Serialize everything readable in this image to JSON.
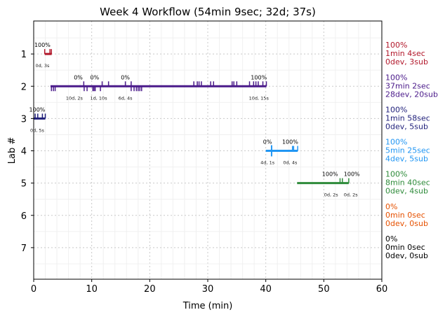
{
  "chart_data": {
    "type": "timeline",
    "title": "Week 4 Workflow (54min 9sec; 32d; 37s)",
    "xlabel": "Time (min)",
    "ylabel": "Lab #",
    "xlim": [
      0,
      60
    ],
    "ylim": [
      8,
      0
    ],
    "xticks": [
      "0",
      "10",
      "20",
      "30",
      "40",
      "50",
      "60"
    ],
    "yticks": [
      "1",
      "2",
      "3",
      "4",
      "5",
      "6",
      "7"
    ],
    "grid": true,
    "labs": [
      {
        "lab": 1,
        "color": "#b2182b",
        "start": 1.9,
        "end": 3.1,
        "up": [
          1.9,
          2.8,
          3.05
        ],
        "down": [],
        "annotations": [
          {
            "t": 1.5,
            "above": "100%",
            "below": "0d, 3s"
          }
        ],
        "summary": [
          "100%",
          "1min 4sec",
          "0dev, 3sub"
        ]
      },
      {
        "lab": 2,
        "color": "#4a1a8a",
        "start": 2.9,
        "end": 40.1,
        "up": [
          8.63,
          11.8,
          12.9,
          15.8,
          16.8,
          27.6,
          28.2,
          28.5,
          28.9,
          30.5,
          31.0,
          34.2,
          34.5,
          35.0,
          37.2,
          37.9,
          38.3,
          38.7,
          39.5,
          40.1
        ],
        "down": [
          3.06,
          3.4,
          3.7,
          8.7,
          9.2,
          10.2,
          10.4,
          10.6,
          11.5,
          16.8,
          17.3,
          17.7,
          18.0,
          18.3,
          18.6
        ],
        "annotations": [
          {
            "t": 8.7,
            "above": "0%",
            "below": "10d, 2s"
          },
          {
            "t": 9.5,
            "above": "0%",
            "below": "1d, 10s"
          },
          {
            "t": 15.8,
            "above": "0%",
            "below": "6d, 4s"
          },
          {
            "t": 38.8,
            "above": "100%",
            "below": "10d, 15s"
          }
        ],
        "summary": [
          "100%",
          "37min 2sec",
          "28dev, 20sub"
        ]
      },
      {
        "lab": 3,
        "color": "#1f1f7a",
        "start": 0.0,
        "end": 2.0,
        "up": [
          0.25,
          0.7,
          1.5,
          2.0
        ],
        "down": [],
        "annotations": [
          {
            "t": 0.6,
            "above": "100%",
            "below": "0d, 5s"
          }
        ],
        "summary": [
          "100%",
          "1min 58sec",
          "0dev, 5sub"
        ]
      },
      {
        "lab": 4,
        "color": "#2196f3",
        "start": 40.0,
        "end": 45.5,
        "up": [
          44.6,
          44.8,
          45.5
        ],
        "down": [],
        "big": [
          41.0
        ],
        "annotations": [
          {
            "t": 40.3,
            "above": "0%",
            "below": "4d, 1s"
          },
          {
            "t": 44.2,
            "above": "100%",
            "below": "0d, 4s"
          }
        ],
        "summary": [
          "100%",
          "5min 25sec",
          "4dev, 5sub"
        ]
      },
      {
        "lab": 5,
        "color": "#2e8b3a",
        "start": 45.4,
        "end": 54.3,
        "up": [
          52.8,
          53.2,
          54.3
        ],
        "down": [],
        "annotations": [
          {
            "t": 52.7,
            "above": "100%",
            "below": "0d, 2s"
          },
          {
            "t": 53.2,
            "above": "100%",
            "below": "0d, 2s"
          }
        ],
        "summary": [
          "100%",
          "8min 40sec",
          "0dev, 4sub"
        ]
      },
      {
        "lab": 6,
        "color": "#e65100",
        "start": null,
        "end": null,
        "up": [],
        "down": [],
        "annotations": [],
        "summary": [
          "0%",
          "0min 0sec",
          "0dev, 0sub"
        ]
      },
      {
        "lab": 7,
        "color": "#000000",
        "start": null,
        "end": null,
        "up": [],
        "down": [],
        "annotations": [],
        "summary": [
          "0%",
          "0min 0sec",
          "0dev, 0sub"
        ]
      }
    ]
  }
}
